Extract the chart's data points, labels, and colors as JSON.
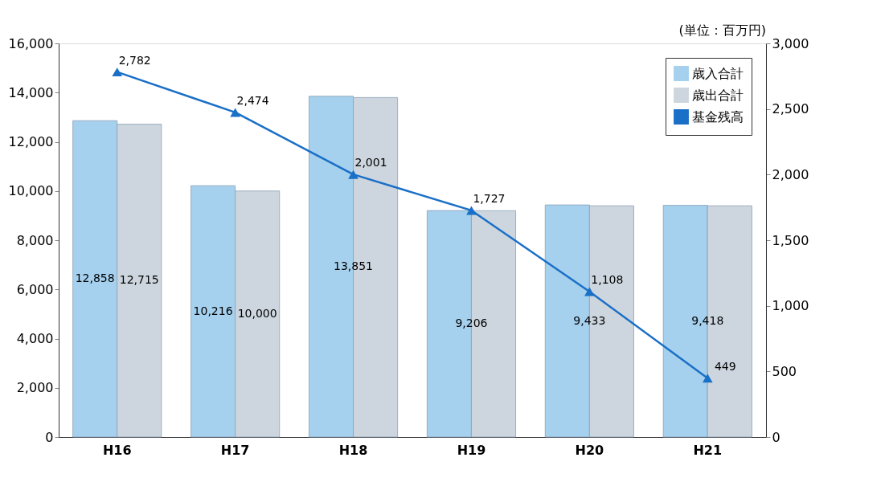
{
  "chart_data": {
    "type": "bar",
    "annotations": [
      "(単位：百万円)"
    ],
    "categories": [
      "H16",
      "H17",
      "H18",
      "H19",
      "H20",
      "H21"
    ],
    "series": [
      {
        "name": "歳入合計",
        "color": "#a5d0ee",
        "values": [
          12858,
          10216,
          13851,
          9206,
          9433,
          9418
        ],
        "value_labels": [
          "12,858",
          "10,216",
          "13,851",
          "9,206",
          "9,433",
          "9,418"
        ]
      },
      {
        "name": "歳出合計",
        "color": "#cdd6de",
        "values": [
          12715,
          10000,
          13800,
          9200,
          9400,
          9400
        ],
        "value_labels": [
          "12,715",
          "10,000",
          null,
          null,
          null,
          null
        ]
      },
      {
        "name": "基金残高",
        "type": "line",
        "axis": "y2",
        "color": "#1a6fc7",
        "values": [
          2782,
          2474,
          2001,
          1727,
          1108,
          449
        ],
        "value_labels": [
          "2,782",
          "2,474",
          "2,001",
          "1,727",
          "1,108",
          "449"
        ]
      }
    ],
    "ylim": [
      0,
      16000
    ],
    "yticks": [
      0,
      {
        "value": 2000,
        "label": "2,000"
      },
      {
        "value": 4000,
        "label": "4,000"
      },
      {
        "value": 6000,
        "label": "6,000"
      },
      {
        "value": 8000,
        "label": "8,000"
      },
      {
        "value": 10000,
        "label": "10,000"
      },
      {
        "value": 12000,
        "label": "12,000"
      },
      {
        "value": 14000,
        "label": "14,000"
      },
      {
        "value": 16000,
        "label": "16,000"
      }
    ],
    "y2lim": [
      0,
      3000
    ],
    "y2ticks": [
      0,
      500,
      {
        "value": 1000,
        "label": "1,000"
      },
      {
        "value": 1500,
        "label": "1,500"
      },
      {
        "value": 2000,
        "label": "2,000"
      },
      {
        "value": 2500,
        "label": "2,500"
      },
      {
        "value": 3000,
        "label": "3,000"
      }
    ],
    "grid": false,
    "legend": "top right",
    "marker": "triangle",
    "line_style": "solid"
  }
}
